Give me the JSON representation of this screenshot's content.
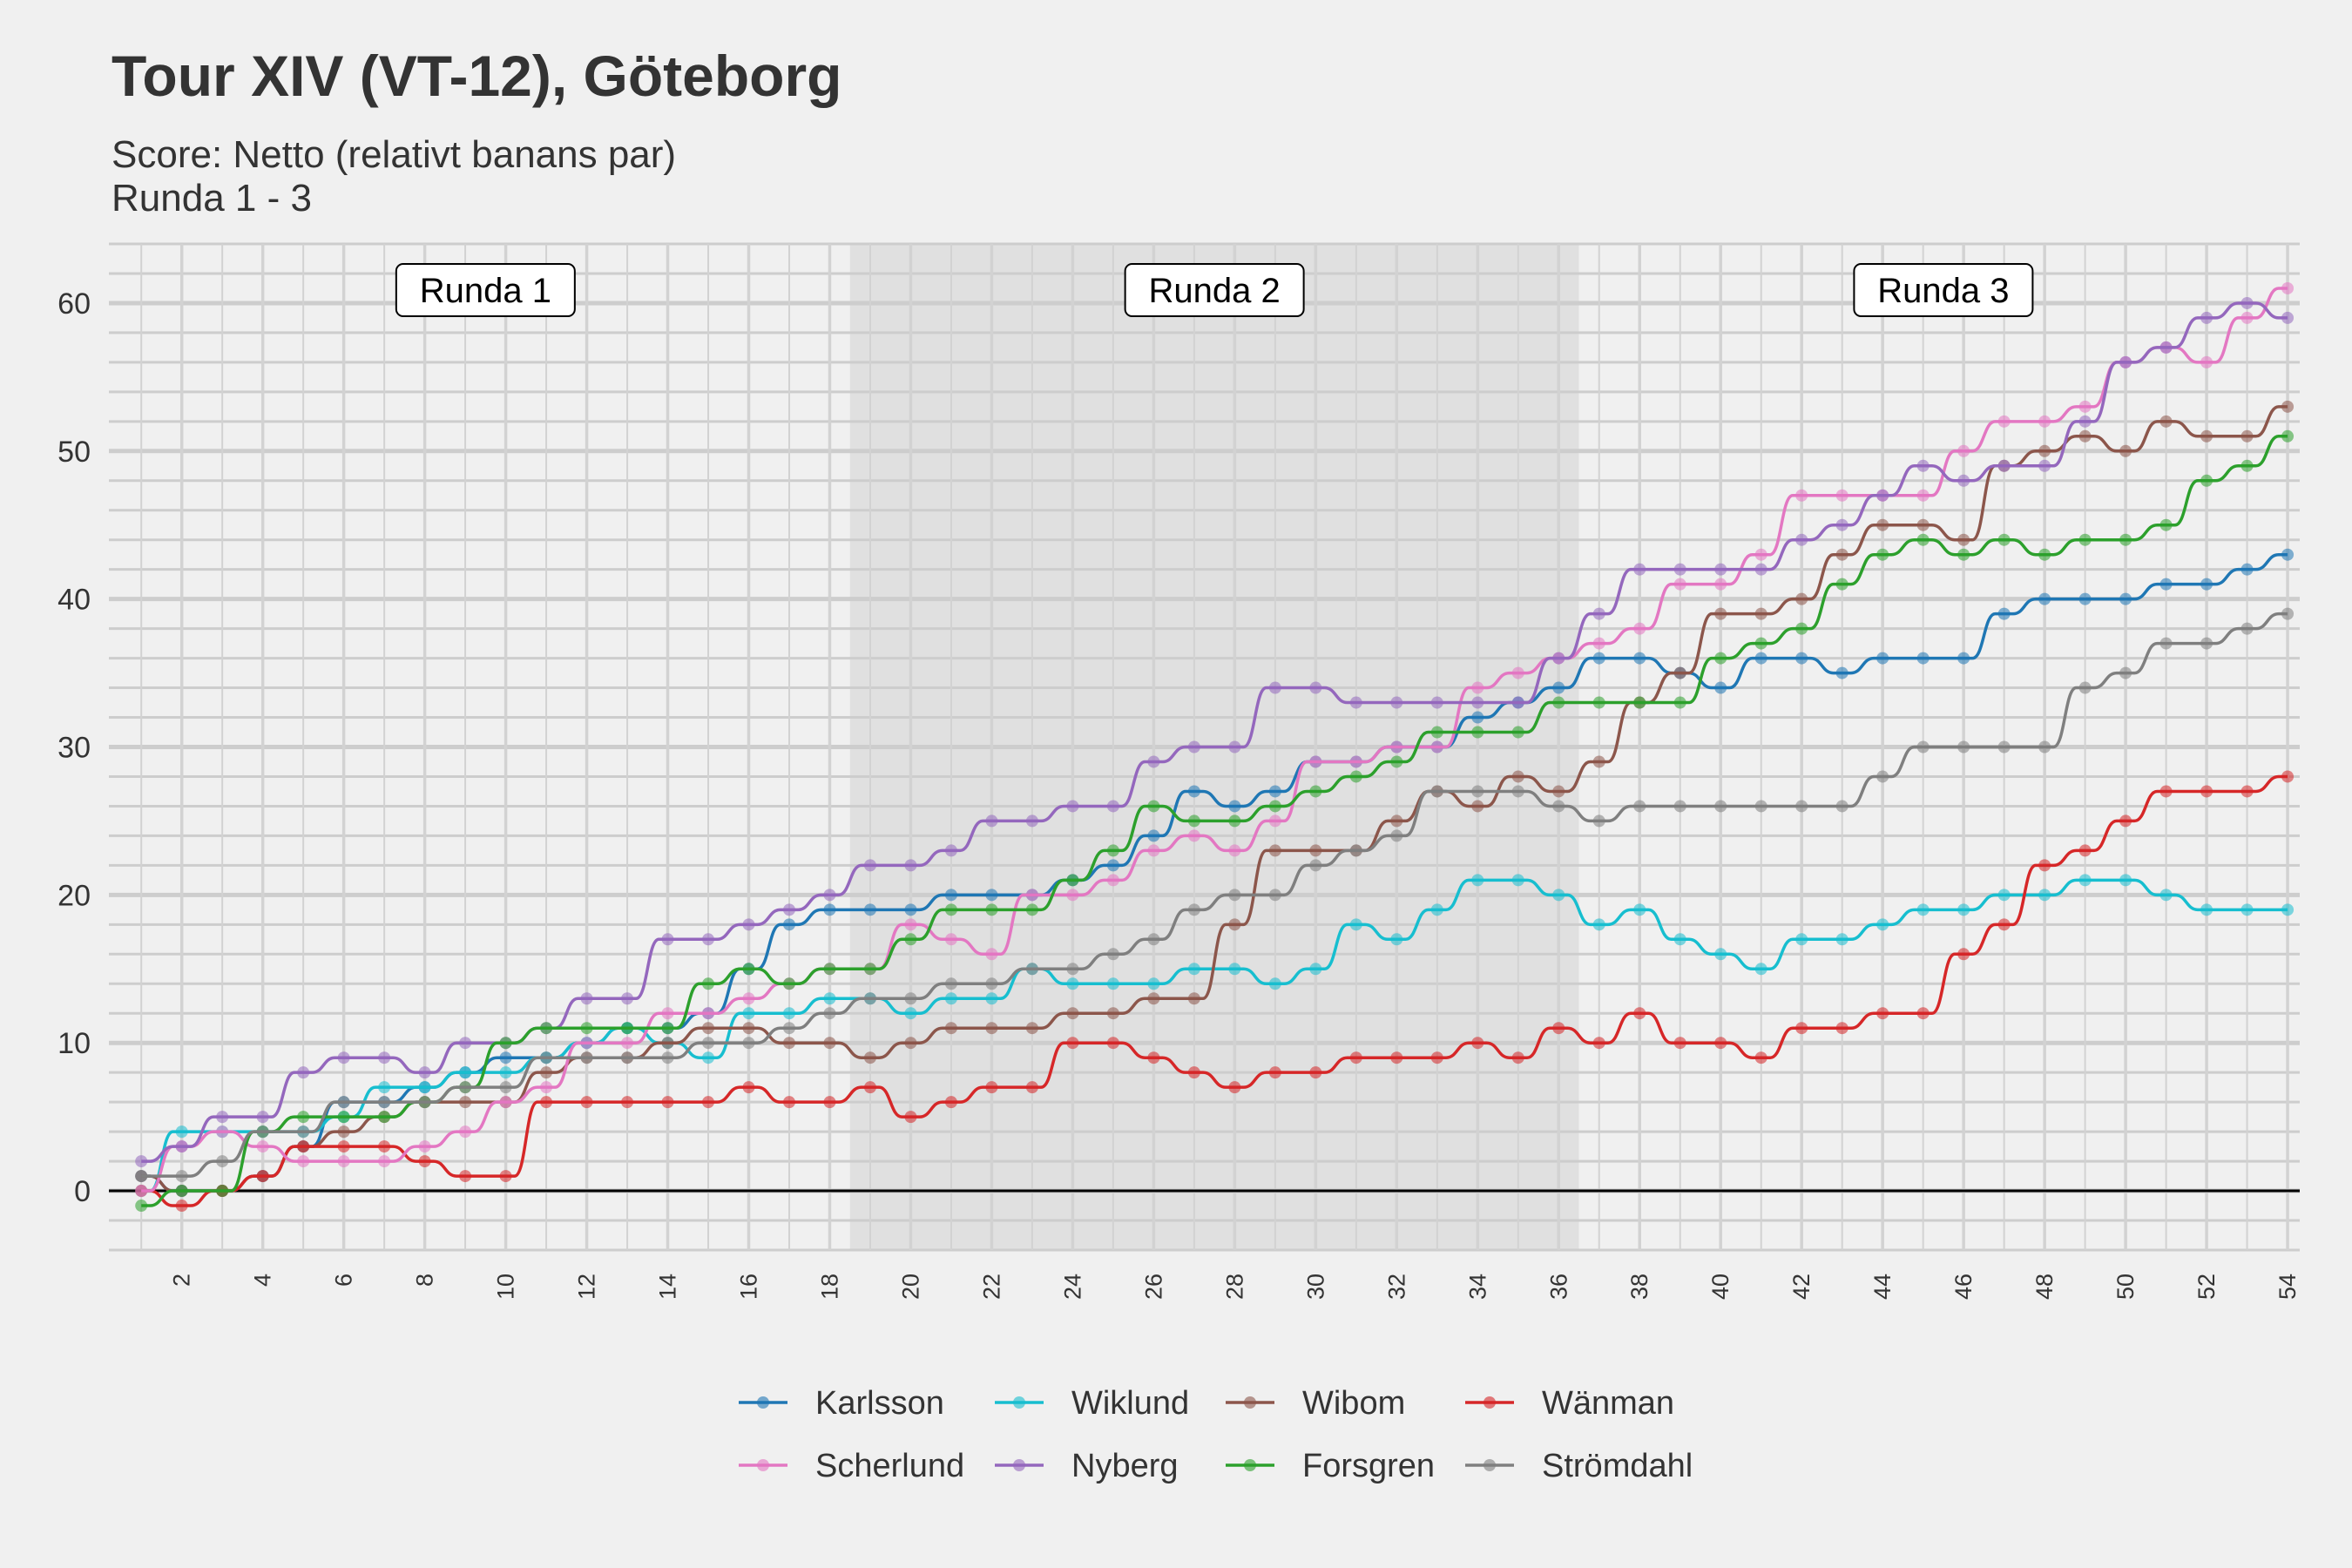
{
  "chart_data": {
    "type": "line",
    "title": "Tour XIV (VT-12), Göteborg",
    "subtitle_lines": [
      "Score: Netto (relativt banans par)",
      "Runda 1 - 3"
    ],
    "xlabel": "",
    "ylabel": "",
    "xlim": [
      0.2,
      54.3
    ],
    "ylim": [
      -4,
      64
    ],
    "x_ticks": [
      2,
      4,
      6,
      8,
      10,
      12,
      14,
      16,
      18,
      20,
      22,
      24,
      26,
      28,
      30,
      32,
      34,
      36,
      38,
      40,
      42,
      44,
      46,
      48,
      50,
      52,
      54
    ],
    "y_ticks": [
      0,
      10,
      20,
      30,
      40,
      50,
      60
    ],
    "rounds": [
      {
        "label": "Runda 1",
        "from": 0.5,
        "to": 18.5,
        "shaded": false
      },
      {
        "label": "Runda 2",
        "from": 18.5,
        "to": 36.5,
        "shaded": true
      },
      {
        "label": "Runda 3",
        "from": 36.5,
        "to": 54.5,
        "shaded": false
      }
    ],
    "x": [
      1,
      2,
      3,
      4,
      5,
      6,
      7,
      8,
      9,
      10,
      11,
      12,
      13,
      14,
      15,
      16,
      17,
      18,
      19,
      20,
      21,
      22,
      23,
      24,
      25,
      26,
      27,
      28,
      29,
      30,
      31,
      32,
      33,
      34,
      35,
      36,
      37,
      38,
      39,
      40,
      41,
      42,
      43,
      44,
      45,
      46,
      47,
      48,
      49,
      50,
      51,
      52,
      53,
      54
    ],
    "series": [
      {
        "name": "Karlsson",
        "color": "#1f77b4",
        "values": [
          1,
          0,
          0,
          1,
          3,
          6,
          6,
          7,
          8,
          9,
          9,
          10,
          11,
          11,
          12,
          15,
          18,
          19,
          19,
          19,
          20,
          20,
          20,
          21,
          22,
          24,
          27,
          26,
          27,
          29,
          29,
          30,
          30,
          32,
          33,
          34,
          36,
          36,
          35,
          34,
          36,
          36,
          35,
          36,
          36,
          36,
          39,
          40,
          40,
          40,
          41,
          41,
          42,
          43
        ]
      },
      {
        "name": "Wiklund",
        "color": "#17becf",
        "values": [
          0,
          4,
          4,
          4,
          4,
          5,
          7,
          7,
          8,
          8,
          9,
          10,
          11,
          10,
          9,
          12,
          12,
          13,
          13,
          12,
          13,
          13,
          15,
          14,
          14,
          14,
          15,
          15,
          14,
          15,
          18,
          17,
          19,
          21,
          21,
          20,
          18,
          19,
          17,
          16,
          15,
          17,
          17,
          18,
          19,
          19,
          20,
          20,
          21,
          21,
          20,
          19,
          19,
          19
        ]
      },
      {
        "name": "Wibom",
        "color": "#8c564b",
        "values": [
          1,
          0,
          0,
          1,
          3,
          4,
          5,
          6,
          6,
          6,
          8,
          9,
          9,
          10,
          11,
          11,
          10,
          10,
          9,
          10,
          11,
          11,
          11,
          12,
          12,
          13,
          13,
          18,
          23,
          23,
          23,
          25,
          27,
          26,
          28,
          27,
          29,
          33,
          35,
          39,
          39,
          40,
          43,
          45,
          45,
          44,
          49,
          50,
          51,
          50,
          52,
          51,
          51,
          53
        ]
      },
      {
        "name": "Wänman",
        "color": "#d62728",
        "values": [
          0,
          -1,
          0,
          1,
          3,
          3,
          3,
          2,
          1,
          1,
          6,
          6,
          6,
          6,
          6,
          7,
          6,
          6,
          7,
          5,
          6,
          7,
          7,
          10,
          10,
          9,
          8,
          7,
          8,
          8,
          9,
          9,
          9,
          10,
          9,
          11,
          10,
          12,
          10,
          10,
          9,
          11,
          11,
          12,
          12,
          16,
          18,
          22,
          23,
          25,
          27,
          27,
          27,
          28
        ]
      },
      {
        "name": "Scherlund",
        "color": "#e377c2",
        "values": [
          0,
          3,
          4,
          3,
          2,
          2,
          2,
          3,
          4,
          6,
          7,
          10,
          10,
          12,
          12,
          13,
          14,
          15,
          15,
          18,
          17,
          16,
          20,
          20,
          21,
          23,
          24,
          23,
          25,
          29,
          29,
          30,
          30,
          34,
          35,
          36,
          37,
          38,
          41,
          41,
          43,
          47,
          47,
          47,
          47,
          50,
          52,
          52,
          53,
          56,
          57,
          56,
          59,
          61
        ]
      },
      {
        "name": "Nyberg",
        "color": "#9467bd",
        "values": [
          2,
          3,
          5,
          5,
          8,
          9,
          9,
          8,
          10,
          10,
          11,
          13,
          13,
          17,
          17,
          18,
          19,
          20,
          22,
          22,
          23,
          25,
          25,
          26,
          26,
          29,
          30,
          30,
          34,
          34,
          33,
          33,
          33,
          33,
          33,
          36,
          39,
          42,
          42,
          42,
          42,
          44,
          45,
          47,
          49,
          48,
          49,
          49,
          52,
          56,
          57,
          59,
          60,
          59
        ]
      },
      {
        "name": "Forsgren",
        "color": "#2ca02c",
        "values": [
          -1,
          0,
          0,
          4,
          5,
          5,
          5,
          6,
          7,
          10,
          11,
          11,
          11,
          11,
          14,
          15,
          14,
          15,
          15,
          17,
          19,
          19,
          19,
          21,
          23,
          26,
          25,
          25,
          26,
          27,
          28,
          29,
          31,
          31,
          31,
          33,
          33,
          33,
          33,
          36,
          37,
          38,
          41,
          43,
          44,
          43,
          44,
          43,
          44,
          44,
          45,
          48,
          49,
          51
        ]
      },
      {
        "name": "Strömdahl",
        "color": "#7f7f7f",
        "values": [
          1,
          1,
          2,
          4,
          4,
          6,
          6,
          6,
          7,
          7,
          9,
          9,
          9,
          9,
          10,
          10,
          11,
          12,
          13,
          13,
          14,
          14,
          15,
          15,
          16,
          17,
          19,
          20,
          20,
          22,
          23,
          24,
          27,
          27,
          27,
          26,
          25,
          26,
          26,
          26,
          26,
          26,
          26,
          28,
          30,
          30,
          30,
          30,
          34,
          35,
          37,
          37,
          38,
          39
        ]
      }
    ],
    "legend": {
      "position": "bottom",
      "columns": 4
    }
  }
}
